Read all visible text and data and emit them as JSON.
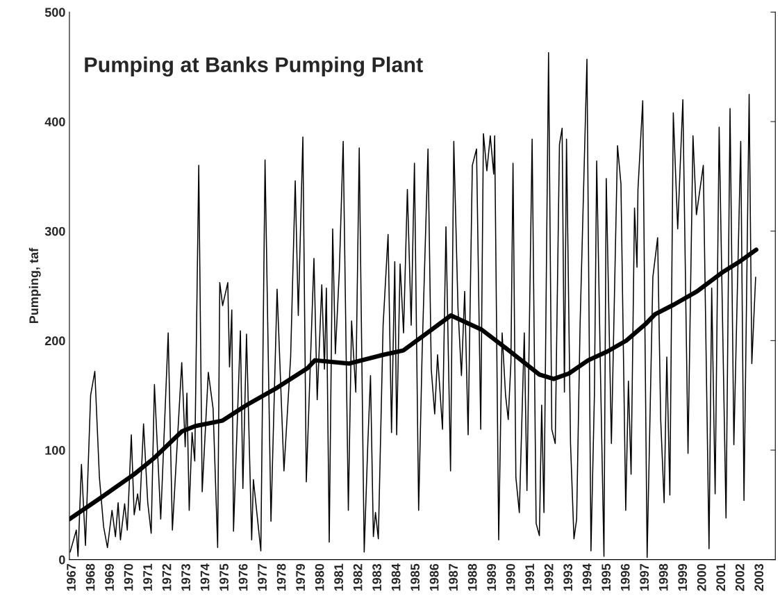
{
  "chart_data": {
    "type": "line",
    "title": "Pumping at Banks Pumping Plant",
    "ylabel": "Pumping, taf",
    "xlim": [
      1966.85,
      2003.8
    ],
    "xticks": [
      1967,
      1968,
      1969,
      1970,
      1971,
      1972,
      1973,
      1974,
      1975,
      1976,
      1977,
      1978,
      1979,
      1980,
      1981,
      1982,
      1983,
      1984,
      1985,
      1986,
      1987,
      1988,
      1989,
      1990,
      1991,
      1992,
      1993,
      1994,
      1995,
      1996,
      1997,
      1998,
      1999,
      2000,
      2001,
      2002,
      2003
    ],
    "ylim": [
      0,
      500
    ],
    "yticks": [
      0,
      100,
      200,
      300,
      400,
      500
    ],
    "grid": false,
    "marker": "none",
    "line_style": "solid",
    "series": [
      {
        "color": "#000000",
        "x": [
          1966.89,
          1967.21,
          1967.3,
          1967.48,
          1967.69,
          1967.96,
          1968.18,
          1968.42,
          1968.64,
          1968.84,
          1969.08,
          1969.26,
          1969.4,
          1969.52,
          1969.74,
          1969.88,
          1970.09,
          1970.24,
          1970.42,
          1970.53,
          1970.73,
          1970.95,
          1971.13,
          1971.3,
          1971.63,
          1972.02,
          1972.24,
          1972.73,
          1972.91,
          1973.0,
          1973.12,
          1973.27,
          1973.41,
          1973.62,
          1973.8,
          1974.12,
          1974.37,
          1974.61,
          1974.72,
          1974.87,
          1975.14,
          1975.23,
          1975.35,
          1975.44,
          1975.8,
          1975.93,
          1976.12,
          1976.39,
          1976.48,
          1976.87,
          1977.09,
          1977.4,
          1977.72,
          1978.08,
          1978.43,
          1978.67,
          1978.83,
          1979.07,
          1979.25,
          1979.65,
          1979.82,
          1980.06,
          1980.2,
          1980.3,
          1980.45,
          1980.63,
          1980.77,
          1980.98,
          1981.18,
          1981.45,
          1981.62,
          1981.84,
          1982.02,
          1982.28,
          1982.47,
          1982.61,
          1982.76,
          1982.87,
          1983.02,
          1983.27,
          1983.53,
          1983.71,
          1983.88,
          1983.98,
          1984.16,
          1984.34,
          1984.54,
          1984.74,
          1984.91,
          1985.13,
          1985.31,
          1985.62,
          1985.79,
          1985.97,
          1986.12,
          1986.38,
          1986.56,
          1986.8,
          1986.97,
          1987.19,
          1987.37,
          1987.54,
          1987.72,
          1987.94,
          1988.16,
          1988.38,
          1988.52,
          1988.7,
          1988.88,
          1989.06,
          1989.11,
          1989.32,
          1989.5,
          1989.68,
          1989.82,
          1989.96,
          1990.07,
          1990.22,
          1990.4,
          1990.66,
          1990.8,
          1991.07,
          1991.28,
          1991.45,
          1991.57,
          1991.69,
          1991.93,
          1992.1,
          1992.28,
          1992.5,
          1992.64,
          1992.76,
          1992.87,
          1993.08,
          1993.26,
          1993.4,
          1993.58,
          1993.94,
          1994.15,
          1994.33,
          1994.45,
          1994.65,
          1994.83,
          1994.95,
          1995.22,
          1995.54,
          1995.72,
          1995.97,
          1996.11,
          1996.25,
          1996.43,
          1996.56,
          1996.61,
          1996.86,
          1997.09,
          1997.39,
          1997.64,
          1997.8,
          1997.98,
          1998.12,
          1998.28,
          1998.46,
          1998.69,
          1998.96,
          1999.23,
          1999.49,
          1999.67,
          2000.03,
          2000.33,
          2000.47,
          2000.65,
          2000.86,
          2001.22,
          2001.43,
          2001.63,
          2001.99,
          2002.16,
          2002.43,
          2002.57,
          2002.77
        ],
        "values": [
          7,
          27,
          3,
          87,
          13,
          150,
          172,
          75,
          30,
          11,
          45,
          21,
          52,
          18,
          51,
          27,
          114,
          41,
          60,
          45,
          124,
          52,
          24,
          160,
          37,
          207,
          27,
          180,
          103,
          152,
          45,
          116,
          90,
          360,
          62,
          171,
          138,
          11,
          253,
          232,
          253,
          176,
          228,
          26,
          209,
          65,
          206,
          18,
          73,
          8,
          365,
          35,
          247,
          81,
          185,
          346,
          223,
          386,
          71,
          275,
          146,
          251,
          174,
          248,
          16,
          302,
          188,
          264,
          382,
          45,
          218,
          153,
          376,
          7,
          106,
          168,
          21,
          43,
          19,
          214,
          297,
          116,
          272,
          114,
          270,
          207,
          338,
          214,
          362,
          45,
          187,
          375,
          174,
          133,
          187,
          119,
          304,
          81,
          382,
          229,
          168,
          245,
          114,
          360,
          375,
          119,
          389,
          355,
          387,
          352,
          387,
          18,
          207,
          150,
          128,
          180,
          362,
          75,
          43,
          207,
          63,
          384,
          33,
          22,
          141,
          43,
          463,
          119,
          106,
          379,
          394,
          153,
          384,
          106,
          19,
          37,
          214,
          457,
          8,
          150,
          364,
          169,
          3,
          348,
          106,
          378,
          343,
          45,
          163,
          78,
          321,
          267,
          338,
          419,
          2,
          258,
          294,
          128,
          52,
          185,
          59,
          408,
          302,
          420,
          97,
          387,
          315,
          360,
          10,
          248,
          60,
          395,
          38,
          412,
          105,
          382,
          54,
          425,
          179,
          258
        ]
      },
      {
        "color": "#000000",
        "x": [
          1966.85,
          1968.45,
          1970.24,
          1971.3,
          1972.73,
          1973.44,
          1974.87,
          1976.11,
          1977.72,
          1979.32,
          1979.7,
          1981.48,
          1983.26,
          1984.33,
          1985.58,
          1986.82,
          1988.43,
          1989.85,
          1991.45,
          1992.2,
          1993.0,
          1994.0,
          1995.0,
          1996.0,
          1997.0,
          1997.5,
          1998.5,
          1999.7,
          2001.0,
          2002.0,
          2002.8
        ],
        "values": [
          37,
          56,
          78,
          93,
          117,
          122,
          127,
          141,
          157,
          175,
          182,
          179,
          187,
          191,
          207,
          223,
          210,
          191,
          169,
          165,
          170,
          182,
          190,
          200,
          215,
          224,
          233,
          245,
          262,
          273,
          283
        ]
      }
    ]
  }
}
